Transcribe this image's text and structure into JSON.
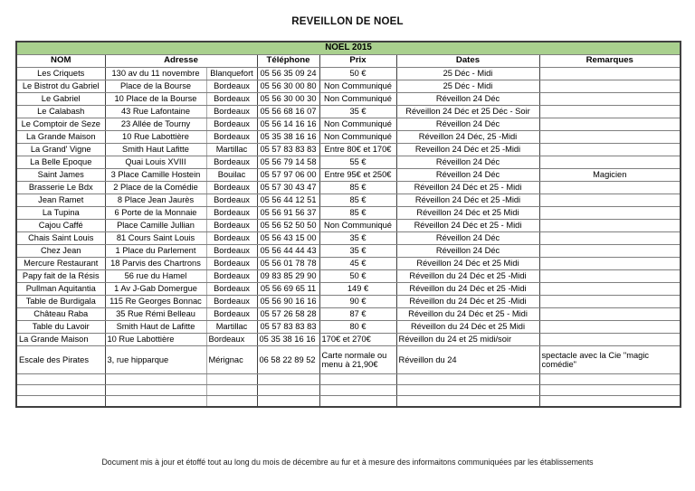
{
  "title": "REVEILLON DE NOEL",
  "footer": "Document mis à jour et étoffé tout au long du mois de décembre au fur et à mesure des informaitons communiquées par les établissements",
  "colors": {
    "banner_bg": "#A9D08E",
    "grid_major": "#404040",
    "grid_minor": "#7f7f7f"
  },
  "table": {
    "banner": "NOEL 2015",
    "headers": {
      "nom": "NOM",
      "adresse": "Adresse",
      "telephone": "Téléphone",
      "prix": "Prix",
      "dates": "Dates",
      "remarques": "Remarques"
    },
    "rows": [
      {
        "nom": "Les Criquets",
        "adresse": "130 av du 11 novembre",
        "ville": "Blanquefort",
        "tel": "05 56 35 09 24",
        "prix": "50 €",
        "dates": "25 Déc - Midi",
        "rem": ""
      },
      {
        "nom": "Le Bistrot du Gabriel",
        "adresse": "Place de la Bourse",
        "ville": "Bordeaux",
        "tel": "05 56 30 00 80",
        "prix": "Non Communiqué",
        "dates": "25 Déc - Midi",
        "rem": ""
      },
      {
        "nom": "Le Gabriel",
        "adresse": "10 Place de la Bourse",
        "ville": "Bordeaux",
        "tel": "05 56 30 00 30",
        "prix": "Non Communiqué",
        "dates": "Réveillon 24 Déc",
        "rem": ""
      },
      {
        "nom": "Le Calabash",
        "adresse": "43 Rue Lafontaine",
        "ville": "Bordeaux",
        "tel": "05 56 68 16 07",
        "prix": "35 €",
        "dates": "Réveillon 24 Déc et 25 Déc - Soir",
        "rem": ""
      },
      {
        "nom": "Le Comptoir de Seze",
        "adresse": "23 Allée de Tourny",
        "ville": "Bordeaux",
        "tel": "05 56 14 16 16",
        "prix": "Non Communiqué",
        "dates": "Réveillon 24 Déc",
        "rem": ""
      },
      {
        "nom": "La Grande Maison",
        "adresse": "10 Rue Labottière",
        "ville": "Bordeaux",
        "tel": "05 35 38 16 16",
        "prix": "Non Communiqué",
        "dates": "Réveillon 24 Déc, 25 -Midi",
        "rem": ""
      },
      {
        "nom": "La Grand' Vigne",
        "adresse": "Smith Haut Lafitte",
        "ville": "Martillac",
        "tel": "05 57 83 83 83",
        "prix": "Entre 80€ et 170€",
        "dates": "Reveillon 24 Déc et 25 -Midi",
        "rem": ""
      },
      {
        "nom": "La Belle Epoque",
        "adresse": "Quai Louis XVIII",
        "ville": "Bordeaux",
        "tel": "05 56 79 14 58",
        "prix": "55 €",
        "dates": "Réveillon 24 Déc",
        "rem": ""
      },
      {
        "nom": "Saint James",
        "adresse": "3 Place Camille Hostein",
        "ville": "Bouilac",
        "tel": "05 57 97 06 00",
        "prix": "Entre 95€ et 250€",
        "dates": "Réveillon 24 Déc",
        "rem": "Magicien"
      },
      {
        "nom": "Brasserie Le Bdx",
        "adresse": "2 Place de la Comédie",
        "ville": "Bordeaux",
        "tel": "05 57 30 43 47",
        "prix": "85 €",
        "dates": "Réveillon 24 Déc et 25 - Midi",
        "rem": ""
      },
      {
        "nom": "Jean Ramet",
        "adresse": "8 Place Jean Jaurès",
        "ville": "Bordeaux",
        "tel": "05 56 44 12 51",
        "prix": "85 €",
        "dates": "Réveillon 24 Déc et 25 -Midi",
        "rem": ""
      },
      {
        "nom": "La Tupina",
        "adresse": "6 Porte de la Monnaie",
        "ville": "Bordeaux",
        "tel": "05 56 91 56 37",
        "prix": "85 €",
        "dates": "Réveillon 24 Déc et 25 Midi",
        "rem": ""
      },
      {
        "nom": "Cajou Caffé",
        "adresse": "Place Camille Jullian",
        "ville": "Bordeaux",
        "tel": "05 56 52 50 50",
        "prix": "Non Communiqué",
        "dates": "Réveillon 24 Déc et 25 - Midi",
        "rem": ""
      },
      {
        "nom": "Chais Saint Louis",
        "adresse": "81 Cours Saint Louis",
        "ville": "Bordeaux",
        "tel": "05 56 43 15 00",
        "prix": "35 €",
        "dates": "Réveillon 24 Déc",
        "rem": ""
      },
      {
        "nom": "Chez Jean",
        "adresse": "1 Place du Parlement",
        "ville": "Bordeaux",
        "tel": "05 56 44 44 43",
        "prix": "35 €",
        "dates": "Réveillon 24 Déc",
        "rem": ""
      },
      {
        "nom": "Mercure Restaurant",
        "adresse": "18 Parvis des Chartrons",
        "ville": "Bordeaux",
        "tel": "05 56 01 78 78",
        "prix": "45 €",
        "dates": "Réveillon 24 Déc et 25 Midi",
        "rem": ""
      },
      {
        "nom": "Papy fait de la Résis",
        "adresse": "56 rue du Hamel",
        "ville": "Bordeaux",
        "tel": "09 83 85 29 90",
        "prix": "50 €",
        "dates": "Réveillon du 24 Déc et 25 -Midi",
        "rem": ""
      },
      {
        "nom": "Pullman Aquitantia",
        "adresse": "1 Av J-Gab Domergue",
        "ville": "Bordeaux",
        "tel": "05 56 69 65 11",
        "prix": "149 €",
        "dates": "Réveillon du 24 Déc et 25 -Midi",
        "rem": ""
      },
      {
        "nom": "Table de Burdigala",
        "adresse": "115 Re Georges Bonnac",
        "ville": "Bordeaux",
        "tel": "05 56 90 16 16",
        "prix": "90 €",
        "dates": "Réveillon du 24 Déc et 25 -Midi",
        "rem": ""
      },
      {
        "nom": "Château Raba",
        "adresse": "35 Rue Rémi Belleau",
        "ville": "Bordeaux",
        "tel": "05 57 26 58 28",
        "prix": "87 €",
        "dates": "Réveillon du 24 Déc et 25 - Midi",
        "rem": ""
      },
      {
        "nom": "Table du Lavoir",
        "adresse": "Smith  Haut de Lafitte",
        "ville": "Martillac",
        "tel": "05 57 83 83 83",
        "prix": "80 €",
        "dates": "Réveillon du 24 Déc et 25 Midi",
        "rem": ""
      },
      {
        "nom": "La Grande Maison",
        "adresse": "10 Rue Labottière",
        "ville": "Bordeaux",
        "tel": "05 35 38 16 16",
        "prix": "170€ et 270€",
        "dates": "Réveillon du 24 et 25 midi/soir",
        "rem": "",
        "align": "left"
      },
      {
        "nom": "Escale des Pirates",
        "adresse": "3, rue hipparque",
        "ville": "Mérignac",
        "tel": "06 58 22 89 52",
        "prix": "Carte normale ou menu à 21,90€",
        "dates": "Réveillon du 24",
        "rem": "spectacle avec la Cie \"magic comédie\"",
        "align": "left",
        "kind": "tall"
      },
      {
        "nom": "",
        "adresse": "",
        "ville": "",
        "tel": "",
        "prix": "",
        "dates": "",
        "rem": "",
        "kind": "empty"
      },
      {
        "nom": "",
        "adresse": "",
        "ville": "",
        "tel": "",
        "prix": "",
        "dates": "",
        "rem": "",
        "kind": "empty"
      },
      {
        "nom": "",
        "adresse": "",
        "ville": "",
        "tel": "",
        "prix": "",
        "dates": "",
        "rem": "",
        "kind": "empty"
      }
    ]
  }
}
